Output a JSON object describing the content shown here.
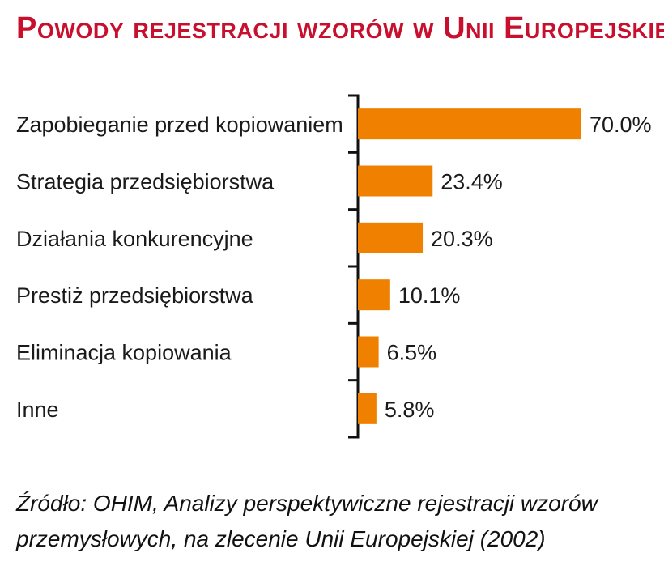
{
  "title": "Powody rejestracji wzorów w Unii Europejskiej",
  "source": "Źródło: OHIM, Analizy perspektywiczne rejestracji wzorów przemysłowych, na zlecenie Unii Europejskiej (2002)",
  "colors": {
    "bar": "#f08000",
    "title": "#c8102e",
    "axis": "#111111"
  },
  "chart_data": {
    "type": "bar",
    "orientation": "horizontal",
    "categories": [
      "Zapobieganie przed kopiowaniem",
      "Strategia przedsiębiorstwa",
      "Działania konkurencyjne",
      "Prestiż przedsiębiorstwa",
      "Eliminacja kopiowania",
      "Inne"
    ],
    "values": [
      70.0,
      23.4,
      20.3,
      10.1,
      6.5,
      5.8
    ],
    "value_labels": [
      "70.0%",
      "23.4%",
      "20.3%",
      "10.1%",
      "6.5%",
      "5.8%"
    ],
    "xlim": [
      0,
      70
    ],
    "grid": false,
    "legend": "none"
  }
}
